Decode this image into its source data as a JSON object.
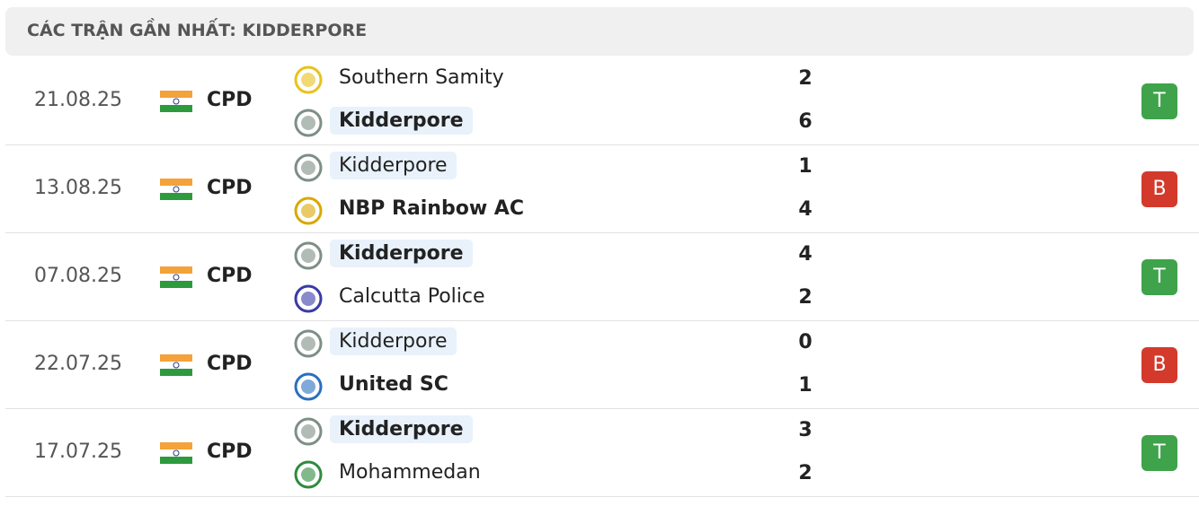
{
  "header": {
    "title": "CÁC TRẬN GẦN NHẤT: KIDDERPORE"
  },
  "matches": [
    {
      "date": "21.08.25",
      "league": "CPD",
      "home": {
        "name": "Southern Samity",
        "score": 2,
        "logo_color": "#e8c21a"
      },
      "away": {
        "name": "Kidderpore",
        "score": 6,
        "logo_color": "#7d8f86"
      },
      "result": "T",
      "result_color": "#3ea34a"
    },
    {
      "date": "13.08.25",
      "league": "CPD",
      "home": {
        "name": "Kidderpore",
        "score": 1,
        "logo_color": "#7d8f86"
      },
      "away": {
        "name": "NBP Rainbow AC",
        "score": 4,
        "logo_color": "#d9a800"
      },
      "result": "B",
      "result_color": "#d33a2c"
    },
    {
      "date": "07.08.25",
      "league": "CPD",
      "home": {
        "name": "Kidderpore",
        "score": 4,
        "logo_color": "#7d8f86"
      },
      "away": {
        "name": "Calcutta Police",
        "score": 2,
        "logo_color": "#3a3aa8"
      },
      "result": "T",
      "result_color": "#3ea34a"
    },
    {
      "date": "22.07.25",
      "league": "CPD",
      "home": {
        "name": "Kidderpore",
        "score": 0,
        "logo_color": "#7d8f86"
      },
      "away": {
        "name": "United SC",
        "score": 1,
        "logo_color": "#2a6fc0"
      },
      "result": "B",
      "result_color": "#d33a2c"
    },
    {
      "date": "17.07.25",
      "league": "CPD",
      "home": {
        "name": "Kidderpore",
        "score": 3,
        "logo_color": "#7d8f86"
      },
      "away": {
        "name": "Mohammedan",
        "score": 2,
        "logo_color": "#2e8b3e"
      },
      "result": "T",
      "result_color": "#3ea34a"
    }
  ]
}
